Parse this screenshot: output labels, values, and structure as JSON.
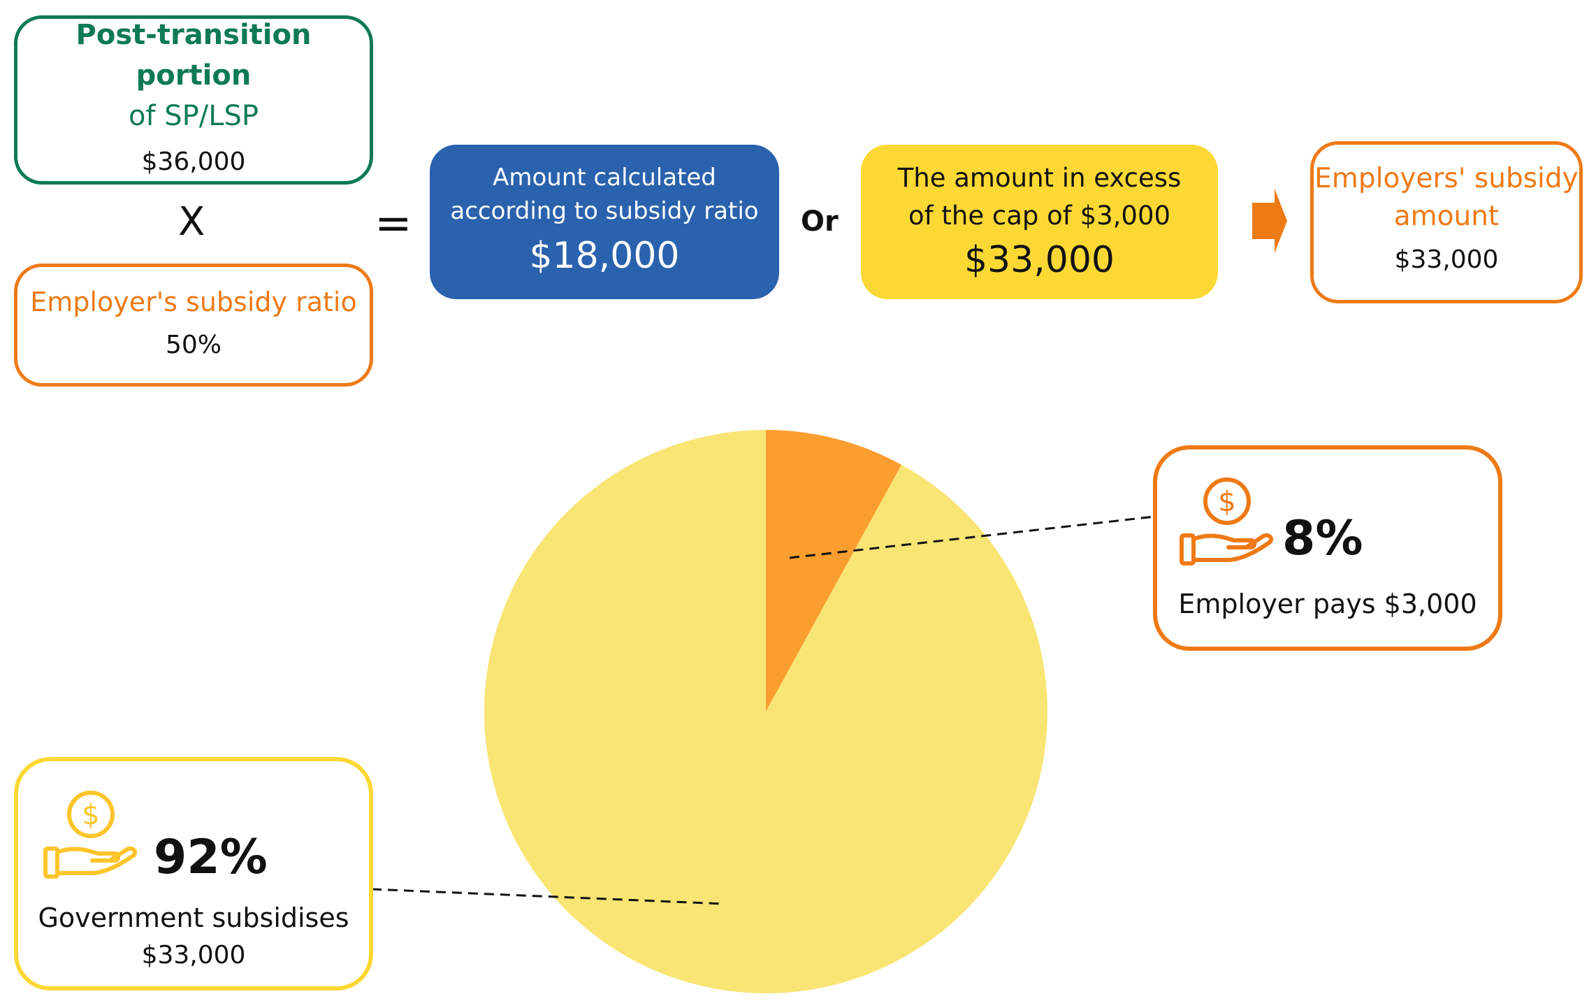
{
  "formula": {
    "portion": {
      "title_bold": "Post-transition portion",
      "title_rest": "of SP/LSP",
      "value": "$36,000"
    },
    "multiply": "X",
    "ratio": {
      "title": "Employer's subsidy ratio",
      "value": "50%"
    },
    "equals": "=",
    "calculated": {
      "line1": "Amount calculated",
      "line2": "according to subsidy ratio",
      "value": "$18,000"
    },
    "or": "Or",
    "excess": {
      "line1": "The amount in excess",
      "line2": "of the cap of $3,000",
      "value": "$33,000"
    },
    "result": {
      "line1": "Employers' subsidy",
      "line2": "amount",
      "value": "$33,000"
    }
  },
  "chart_data": {
    "type": "pie",
    "slices": [
      {
        "label": "Employer pays $3,000",
        "percent": 8,
        "color": "#fb9e30"
      },
      {
        "label": "Government subsidises $33,000",
        "percent": 92,
        "color": "#f9e574"
      }
    ]
  },
  "callouts": {
    "employer": {
      "percent": "8%",
      "text": "Employer pays $3,000"
    },
    "government": {
      "percent": "92%",
      "line1": "Government subsidises",
      "line2": "$33,000"
    }
  },
  "colors": {
    "green": "#0e7a55",
    "orange": "#ee7a16",
    "blue": "#2a62ad",
    "yellow": "#fcd835",
    "pie_orange": "#fb9e30",
    "pie_yellow": "#f9e574"
  },
  "icons": [
    "dollar-hand-icon",
    "arrow-right-icon"
  ]
}
